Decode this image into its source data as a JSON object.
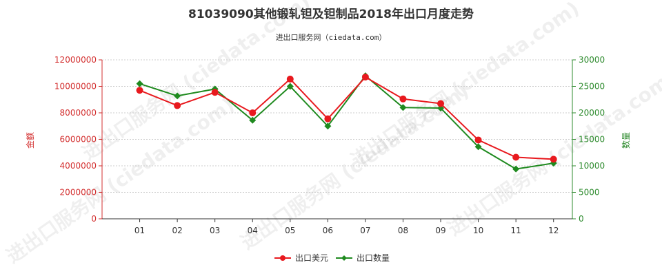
{
  "title": "81039090其他锻轧钽及钽制品2018年出口月度走势",
  "subtitle": "进出口服务网（ciedata.com）",
  "watermark_text": "进出口服务网 (ciedata.com)",
  "colors": {
    "amount": "#e8191e",
    "quantity": "#1f8a1f",
    "left_axis": "#d32f2f",
    "right_axis": "#2e8b2e"
  },
  "chart_data": {
    "type": "line",
    "categories": [
      "01",
      "02",
      "03",
      "04",
      "05",
      "06",
      "07",
      "08",
      "09",
      "10",
      "11",
      "12"
    ],
    "series": [
      {
        "name": "出口美元",
        "axis": "left",
        "marker": "circle",
        "values": [
          9700000,
          8550000,
          9550000,
          8000000,
          10550000,
          7550000,
          10700000,
          9050000,
          8700000,
          5950000,
          4650000,
          4500000
        ]
      },
      {
        "name": "出口数量",
        "axis": "right",
        "marker": "diamond",
        "values": [
          25500,
          23200,
          24500,
          18600,
          25000,
          17500,
          27000,
          21000,
          20900,
          13600,
          9400,
          10500
        ]
      }
    ],
    "ylabel": "金额",
    "y2label": "数量",
    "ylim": [
      0,
      12000000
    ],
    "y2lim": [
      0,
      30000
    ],
    "yticks": [
      "0",
      "2000000",
      "4000000",
      "6000000",
      "8000000",
      "10000000",
      "12000000"
    ],
    "y2ticks": [
      "0",
      "5000",
      "10000",
      "15000",
      "20000",
      "25000",
      "30000"
    ],
    "grid": true,
    "legend_position": "bottom"
  }
}
